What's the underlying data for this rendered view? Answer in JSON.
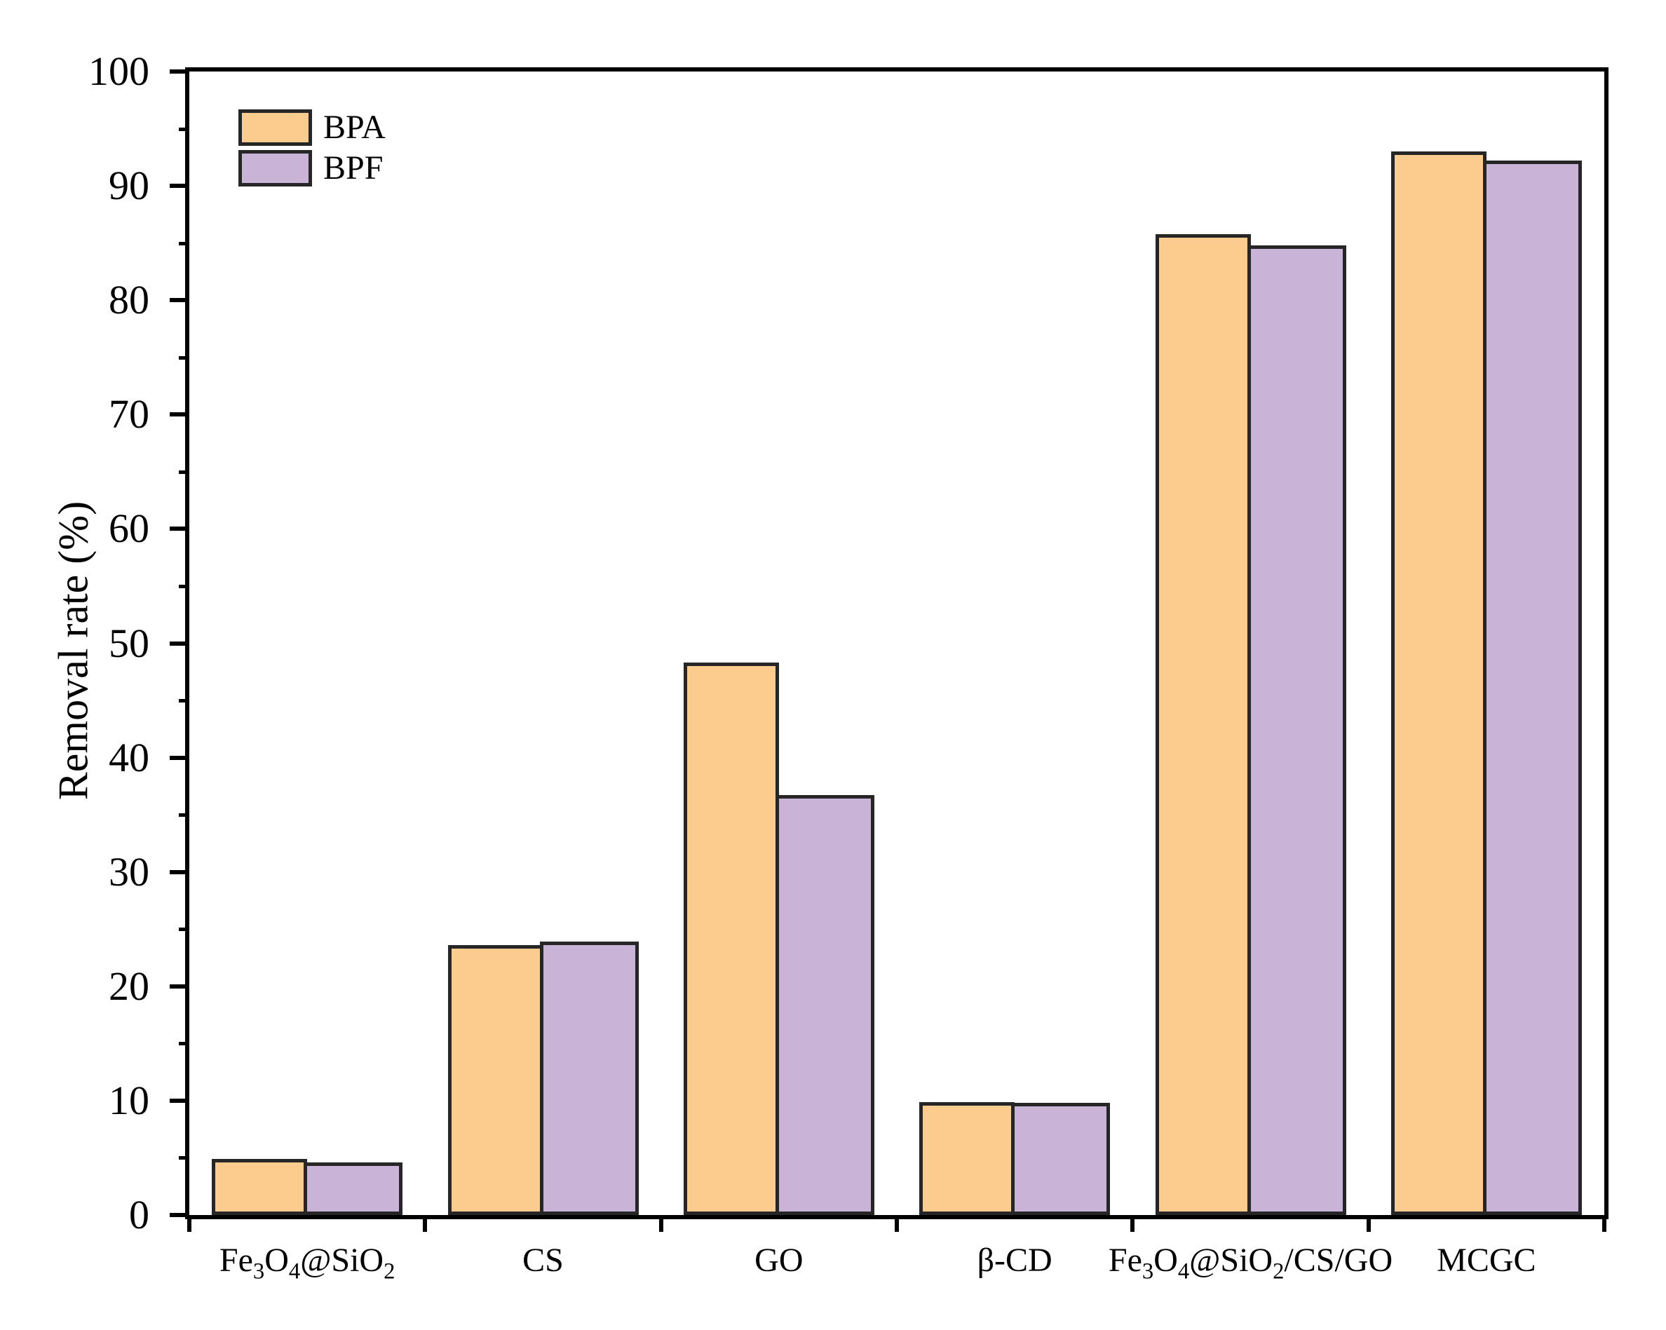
{
  "figure": {
    "background": "#ffffff"
  },
  "chart_data": {
    "type": "bar",
    "title": "",
    "xlabel": "",
    "ylabel": "Removal rate (%)",
    "ylim": [
      0,
      100
    ],
    "y_major_tick_step": 10,
    "y_minor_tick_step": 5,
    "y_tick_labels": [
      "0",
      "10",
      "20",
      "30",
      "40",
      "50",
      "60",
      "70",
      "80",
      "90",
      "100"
    ],
    "grid": false,
    "legend_position": "top-left",
    "axis_color": "#000000",
    "bar_border_color": "#262626",
    "categories": [
      "Fe₃O₄@SiO₂",
      "CS",
      "GO",
      "β-CD",
      "Fe₃O₄@SiO₂/CS/GO",
      "MCGC"
    ],
    "series": [
      {
        "name": "BPA",
        "fill": "#FCCB8E",
        "values": [
          4.9,
          23.6,
          48.3,
          9.9,
          85.8,
          93.0
        ]
      },
      {
        "name": "BPF",
        "fill": "#C9B4D7",
        "values": [
          4.6,
          23.9,
          36.7,
          9.8,
          84.8,
          92.2
        ]
      }
    ]
  }
}
